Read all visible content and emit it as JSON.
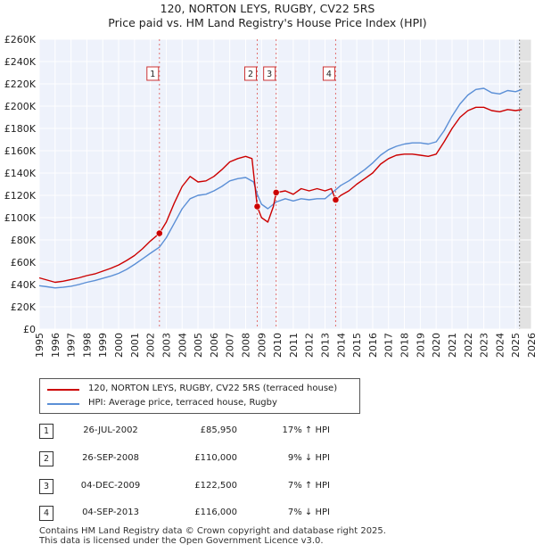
{
  "chart_data": {
    "type": "line",
    "title": "120, NORTON LEYS, RUGBY, CV22 5RS",
    "subtitle": "Price paid vs. HM Land Registry's House Price Index (HPI)",
    "ylim": [
      0,
      260000
    ],
    "xlim": [
      1995.0,
      2026.0
    ],
    "y_ticks": [
      0,
      20000,
      40000,
      60000,
      80000,
      100000,
      120000,
      140000,
      160000,
      180000,
      200000,
      220000,
      240000,
      260000
    ],
    "y_tick_labels": [
      "£0",
      "£20K",
      "£40K",
      "£60K",
      "£80K",
      "£100K",
      "£120K",
      "£140K",
      "£160K",
      "£180K",
      "£200K",
      "£220K",
      "£240K",
      "£260K"
    ],
    "x_ticks": [
      "1995",
      "1996",
      "1997",
      "1998",
      "1999",
      "2000",
      "2001",
      "2002",
      "2003",
      "2004",
      "2005",
      "2006",
      "2007",
      "2008",
      "2009",
      "2010",
      "2011",
      "2012",
      "2013",
      "2014",
      "2015",
      "2016",
      "2017",
      "2018",
      "2019",
      "2020",
      "2021",
      "2022",
      "2023",
      "2024",
      "2025",
      "2026"
    ],
    "future_start": 2025.25,
    "series": [
      {
        "name": "120, NORTON LEYS, RUGBY, CV22 5RS (terraced house)",
        "color": "#cc0000",
        "points": [
          [
            1995.0,
            46000
          ],
          [
            1995.5,
            44000
          ],
          [
            1996.0,
            42000
          ],
          [
            1996.5,
            43000
          ],
          [
            1997.0,
            44500
          ],
          [
            1997.5,
            46000
          ],
          [
            1998.0,
            48000
          ],
          [
            1998.5,
            49500
          ],
          [
            1999.0,
            52000
          ],
          [
            1999.5,
            54500
          ],
          [
            2000.0,
            57500
          ],
          [
            2000.5,
            61500
          ],
          [
            2001.0,
            66000
          ],
          [
            2001.5,
            72000
          ],
          [
            2002.0,
            79000
          ],
          [
            2002.57,
            85950
          ],
          [
            2003.0,
            96000
          ],
          [
            2003.5,
            113000
          ],
          [
            2004.0,
            128000
          ],
          [
            2004.5,
            137000
          ],
          [
            2005.0,
            132000
          ],
          [
            2005.5,
            133000
          ],
          [
            2006.0,
            137000
          ],
          [
            2006.5,
            143000
          ],
          [
            2007.0,
            150000
          ],
          [
            2007.5,
            153000
          ],
          [
            2008.0,
            155000
          ],
          [
            2008.4,
            153000
          ],
          [
            2008.73,
            110000
          ],
          [
            2009.0,
            100000
          ],
          [
            2009.4,
            96000
          ],
          [
            2009.75,
            110000
          ],
          [
            2009.92,
            122500
          ],
          [
            2010.5,
            124000
          ],
          [
            2011.0,
            121000
          ],
          [
            2011.5,
            126000
          ],
          [
            2012.0,
            124000
          ],
          [
            2012.5,
            126000
          ],
          [
            2013.0,
            124000
          ],
          [
            2013.4,
            126000
          ],
          [
            2013.67,
            116000
          ],
          [
            2014.0,
            120000
          ],
          [
            2014.5,
            124000
          ],
          [
            2015.0,
            130000
          ],
          [
            2015.5,
            135000
          ],
          [
            2016.0,
            140000
          ],
          [
            2016.5,
            148000
          ],
          [
            2017.0,
            153000
          ],
          [
            2017.5,
            156000
          ],
          [
            2018.0,
            157000
          ],
          [
            2018.5,
            157000
          ],
          [
            2019.0,
            156000
          ],
          [
            2019.5,
            155000
          ],
          [
            2020.0,
            157000
          ],
          [
            2020.5,
            168000
          ],
          [
            2021.0,
            180000
          ],
          [
            2021.5,
            190000
          ],
          [
            2022.0,
            196000
          ],
          [
            2022.5,
            199000
          ],
          [
            2023.0,
            199000
          ],
          [
            2023.5,
            196000
          ],
          [
            2024.0,
            195000
          ],
          [
            2024.5,
            197000
          ],
          [
            2025.0,
            196000
          ],
          [
            2025.4,
            197000
          ]
        ]
      },
      {
        "name": "HPI: Average price, terraced house, Rugby",
        "color": "#5b8fd6",
        "points": [
          [
            1995.0,
            39000
          ],
          [
            1995.5,
            38000
          ],
          [
            1996.0,
            37000
          ],
          [
            1996.5,
            37500
          ],
          [
            1997.0,
            38500
          ],
          [
            1997.5,
            40000
          ],
          [
            1998.0,
            42000
          ],
          [
            1998.5,
            43500
          ],
          [
            1999.0,
            45500
          ],
          [
            1999.5,
            47500
          ],
          [
            2000.0,
            50000
          ],
          [
            2000.5,
            53500
          ],
          [
            2001.0,
            58000
          ],
          [
            2001.5,
            63000
          ],
          [
            2002.0,
            68000
          ],
          [
            2002.57,
            73500
          ],
          [
            2003.0,
            82000
          ],
          [
            2003.5,
            95000
          ],
          [
            2004.0,
            108000
          ],
          [
            2004.5,
            117000
          ],
          [
            2005.0,
            120000
          ],
          [
            2005.5,
            121000
          ],
          [
            2006.0,
            124000
          ],
          [
            2006.5,
            128000
          ],
          [
            2007.0,
            133000
          ],
          [
            2007.5,
            135000
          ],
          [
            2008.0,
            136000
          ],
          [
            2008.5,
            132000
          ],
          [
            2008.73,
            121000
          ],
          [
            2009.0,
            112000
          ],
          [
            2009.4,
            108000
          ],
          [
            2009.92,
            114000
          ],
          [
            2010.5,
            117000
          ],
          [
            2011.0,
            115000
          ],
          [
            2011.5,
            117000
          ],
          [
            2012.0,
            116000
          ],
          [
            2012.5,
            117000
          ],
          [
            2013.0,
            117000
          ],
          [
            2013.67,
            125000
          ],
          [
            2014.0,
            129000
          ],
          [
            2014.5,
            133000
          ],
          [
            2015.0,
            138000
          ],
          [
            2015.5,
            143000
          ],
          [
            2016.0,
            149000
          ],
          [
            2016.5,
            156000
          ],
          [
            2017.0,
            161000
          ],
          [
            2017.5,
            164000
          ],
          [
            2018.0,
            166000
          ],
          [
            2018.5,
            167000
          ],
          [
            2019.0,
            167000
          ],
          [
            2019.5,
            166000
          ],
          [
            2020.0,
            168000
          ],
          [
            2020.5,
            178000
          ],
          [
            2021.0,
            191000
          ],
          [
            2021.5,
            202000
          ],
          [
            2022.0,
            210000
          ],
          [
            2022.5,
            215000
          ],
          [
            2023.0,
            216000
          ],
          [
            2023.5,
            212000
          ],
          [
            2024.0,
            211000
          ],
          [
            2024.5,
            214000
          ],
          [
            2025.0,
            213000
          ],
          [
            2025.4,
            215000
          ]
        ]
      }
    ],
    "sales": [
      {
        "num": "1",
        "x": 2002.57,
        "value": 85950,
        "date": "26-JUL-2002",
        "price": "£85,950",
        "hpi": "17% ↑ HPI"
      },
      {
        "num": "2",
        "x": 2008.73,
        "value": 110000,
        "date": "26-SEP-2008",
        "price": "£110,000",
        "hpi": "9% ↓ HPI"
      },
      {
        "num": "3",
        "x": 2009.92,
        "value": 122500,
        "date": "04-DEC-2009",
        "price": "£122,500",
        "hpi": "7% ↑ HPI"
      },
      {
        "num": "4",
        "x": 2013.67,
        "value": 116000,
        "date": "04-SEP-2013",
        "price": "£116,000",
        "hpi": "7% ↓ HPI"
      }
    ]
  },
  "footer": {
    "line1": "Contains HM Land Registry data © Crown copyright and database right 2025.",
    "line2": "This data is licensed under the Open Government Licence v3.0."
  }
}
